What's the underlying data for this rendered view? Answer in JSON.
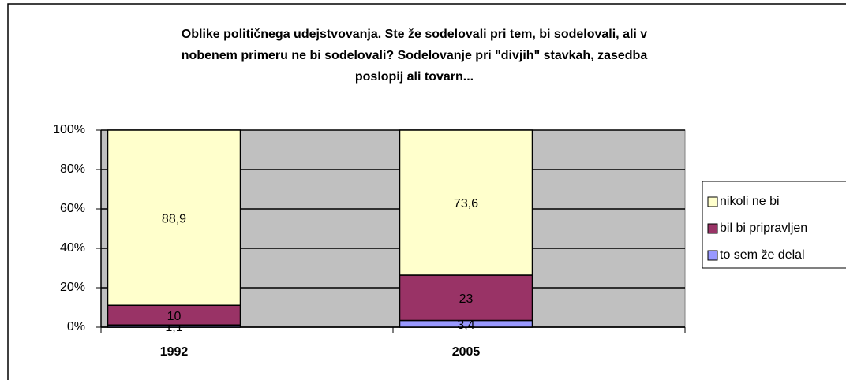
{
  "chart_data": {
    "type": "stacked_bar_100",
    "title": [
      "Oblike političnega udejstvovanja. Ste že sodelovali pri tem, bi sodelovali, ali v",
      "nobenem primeru ne bi sodelovali? Sodelovanje pri \"divjih\" stavkah, zasedba",
      "poslopij ali tovarn..."
    ],
    "categories": [
      "1992",
      "2005"
    ],
    "series": [
      {
        "name": "to sem že delal",
        "color": "#9999ff",
        "values": [
          1.1,
          3.4
        ],
        "value_labels": [
          "1,1",
          "3,4"
        ]
      },
      {
        "name": "bil bi pripravljen",
        "color": "#993366",
        "values": [
          10,
          23
        ],
        "value_labels": [
          "10",
          "23"
        ]
      },
      {
        "name": "nikoli ne bi",
        "color": "#ffffcc",
        "values": [
          88.9,
          73.6
        ],
        "value_labels": [
          "88,9",
          "73,6"
        ]
      }
    ],
    "ylim": [
      0,
      100
    ],
    "yticks": [
      {
        "value": 0,
        "label": "0%"
      },
      {
        "value": 20,
        "label": "20%"
      },
      {
        "value": 40,
        "label": "40%"
      },
      {
        "value": 60,
        "label": "60%"
      },
      {
        "value": 80,
        "label": "80%"
      },
      {
        "value": 100,
        "label": "100%"
      }
    ],
    "grid": true,
    "legend": "right",
    "plot_background": "#c0c0c0"
  }
}
